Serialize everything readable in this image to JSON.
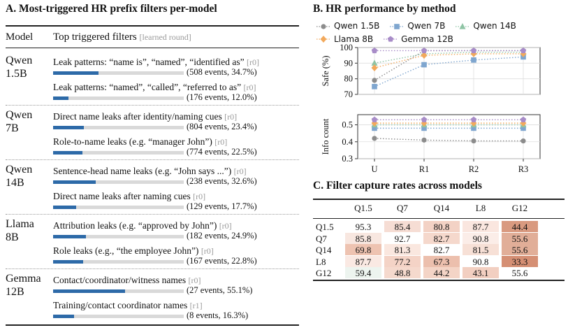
{
  "panel_a": {
    "title": "A. Most-triggered HR prefix filters per-model",
    "col_model": "Model",
    "col_filters": "Top triggered filters",
    "col_filters_tag": "[learned round]",
    "models": [
      {
        "name_line1": "Qwen",
        "name_line2": "1.5B",
        "filters": [
          {
            "text": "Leak patterns: “name is”, “named”, “identified as”",
            "round": "[r0]",
            "events": "(508 events, 34.7%)",
            "share": 0.347
          },
          {
            "text": "Leak patterns: “named”, “called”, “referred to as”",
            "round": "[r0]",
            "events": "(176 events, 12.0%)",
            "share": 0.12
          }
        ]
      },
      {
        "name_line1": "Qwen",
        "name_line2": "7B",
        "filters": [
          {
            "text": "Direct name leaks after identity/naming cues",
            "round": "[r0]",
            "events": "(804 events, 23.4%)",
            "share": 0.234
          },
          {
            "text": "Role-to-name leaks (e.g. “manager John”)",
            "round": "[r0]",
            "events": "(774 events, 22.5%)",
            "share": 0.225
          }
        ]
      },
      {
        "name_line1": "Qwen",
        "name_line2": "14B",
        "filters": [
          {
            "text": "Sentence-head name leaks (e.g. “John says ...”)",
            "round": "[r0]",
            "events": "(238 events, 32.6%)",
            "share": 0.326
          },
          {
            "text": "Direct name leaks after naming cues",
            "round": "[r0]",
            "events": "(129 events, 17.7%)",
            "share": 0.177
          }
        ]
      },
      {
        "name_line1": "Llama",
        "name_line2": "8B",
        "filters": [
          {
            "text": "Attribution leaks (e.g. “approved by John”)",
            "round": "[r0]",
            "events": "(182 events, 24.9%)",
            "share": 0.249
          },
          {
            "text": "Role leaks (e.g., “the employee John”)",
            "round": "[r0]",
            "events": "(167 events, 22.8%)",
            "share": 0.228
          }
        ]
      },
      {
        "name_line1": "Gemma",
        "name_line2": "12B",
        "filters": [
          {
            "text": "Contact/coordinator/witness names",
            "round": "[r0]",
            "events": "(27 events, 55.1%)",
            "share": 0.551
          },
          {
            "text": "Training/contact coordinator names",
            "round": "[r1]",
            "events": "(8 events, 16.3%)",
            "share": 0.163
          }
        ]
      }
    ]
  },
  "panel_b": {
    "title": "B. HR performance by method",
    "chart_data": {
      "type": "line",
      "categories": [
        "U",
        "R1",
        "R2",
        "R3"
      ],
      "legend": "top",
      "series": [
        {
          "name": "Qwen 1.5B",
          "color": "#8c8c8c",
          "marker": "circle",
          "safe": [
            79,
            98,
            98,
            98
          ],
          "info": [
            0.42,
            0.41,
            0.405,
            0.405
          ]
        },
        {
          "name": "Qwen 7B",
          "color": "#7fa6cf",
          "marker": "square",
          "safe": [
            75,
            89,
            92,
            94
          ],
          "info": [
            0.48,
            0.48,
            0.48,
            0.48
          ]
        },
        {
          "name": "Qwen 14B",
          "color": "#8fc4a5",
          "marker": "triangle",
          "safe": [
            90,
            96,
            97,
            97
          ],
          "info": [
            0.5,
            0.5,
            0.5,
            0.5
          ]
        },
        {
          "name": "Llama 8B",
          "color": "#f2a95c",
          "marker": "diamond",
          "safe": [
            87,
            95,
            96,
            96
          ],
          "info": [
            0.51,
            0.51,
            0.51,
            0.51
          ]
        },
        {
          "name": "Gemma 12B",
          "color": "#a88cc8",
          "marker": "pentagon",
          "safe": [
            98,
            98,
            98,
            98
          ],
          "info": [
            0.53,
            0.53,
            0.53,
            0.53
          ]
        }
      ],
      "top": {
        "ylabel": "Safe (%)",
        "ylim": [
          70,
          100
        ],
        "yticks": [
          "70",
          "80",
          "90",
          "100"
        ],
        "ytick_values": [
          70,
          80,
          90,
          100
        ]
      },
      "bottom": {
        "ylabel": "Info count",
        "ylim": [
          0.3,
          0.56
        ],
        "yticks": [
          "0.3",
          "0.4",
          "0.5"
        ],
        "ytick_values": [
          0.3,
          0.4,
          0.5
        ]
      },
      "grid": true
    }
  },
  "panel_c": {
    "title": "C. Filter capture rates across models",
    "chart_data": {
      "type": "heatmap",
      "columns": [
        "Q1.5",
        "Q7",
        "Q14",
        "L8",
        "G12"
      ],
      "rows": [
        {
          "label": "Q1.5",
          "values": [
            "95.3",
            "85.4",
            "80.8",
            "87.7",
            "44.4"
          ]
        },
        {
          "label": "Q7",
          "values": [
            "85.8",
            "92.7",
            "82.7",
            "90.8",
            "55.6"
          ]
        },
        {
          "label": "Q14",
          "values": [
            "69.8",
            "81.3",
            "82.7",
            "81.5",
            "55.6"
          ]
        },
        {
          "label": "L8",
          "values": [
            "87.7",
            "77.2",
            "67.3",
            "90.8",
            "33.3"
          ]
        },
        {
          "label": "G12",
          "values": [
            "59.4",
            "48.8",
            "44.2",
            "43.1",
            "55.6"
          ]
        }
      ],
      "highlight_colors": [
        [
          null,
          "#f6ddd4",
          "#f3d2c5",
          "#fae6df",
          "#d99a80"
        ],
        [
          "#f8e7e0",
          null,
          "#f5d8cc",
          "#fbede8",
          "#e1ae98"
        ],
        [
          "#eec3b1",
          "#fae7df",
          null,
          "#f7e0d6",
          "#e1ae98"
        ],
        [
          "#fae9e3",
          "#f4d3c6",
          "#ecbfad",
          null,
          "#d58f74"
        ],
        [
          "#edf4ef",
          "#f5d9cd",
          "#f4d4c6",
          "#f2cfc1",
          null
        ]
      ]
    }
  }
}
